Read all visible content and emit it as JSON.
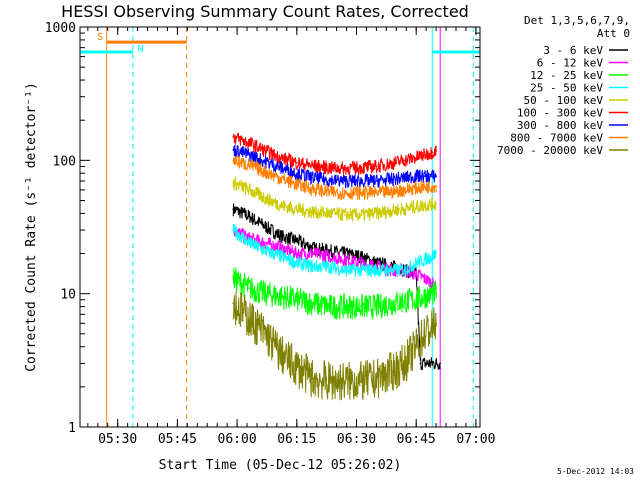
{
  "chart_data": {
    "type": "line",
    "title": "HESSI Observing Summary Count Rates, Corrected",
    "xlabel": "Start Time (05-Dec-12 05:26:02)",
    "ylabel": "Corrected Count Rate (s⁻¹ detector⁻¹)",
    "x_unit": "minutes after 05:26:02 UT",
    "xlim": [
      -0.5,
      100
    ],
    "ylim": [
      1,
      1000
    ],
    "y_scale": "log",
    "x_ticks": [
      {
        "value": 8.97,
        "label": "05:30"
      },
      {
        "value": 23.97,
        "label": "05:45"
      },
      {
        "value": 38.97,
        "label": "06:00"
      },
      {
        "value": 53.97,
        "label": "06:15"
      },
      {
        "value": 68.97,
        "label": "06:30"
      },
      {
        "value": 83.97,
        "label": "06:45"
      },
      {
        "value": 98.97,
        "label": "07:00"
      }
    ],
    "y_ticks": [
      {
        "value": 1,
        "label": "1"
      },
      {
        "value": 10,
        "label": "10"
      },
      {
        "value": 100,
        "label": "100"
      },
      {
        "value": 1000,
        "label": "1000"
      }
    ],
    "legend": {
      "header": [
        "Det 1,3,5,6,7,9,",
        "Att 0"
      ],
      "placement": "right-outside-top"
    },
    "series": [
      {
        "name": "3 - 6 keV",
        "color": "#000000",
        "x": [
          38,
          42,
          46,
          50,
          54,
          58,
          62,
          66,
          70,
          74,
          78,
          81,
          84,
          85,
          87,
          88,
          89,
          90
        ],
        "y": [
          43,
          38,
          32,
          27,
          25,
          22,
          21,
          20,
          19,
          17,
          16,
          15,
          14,
          3,
          3,
          3,
          3,
          3
        ]
      },
      {
        "name": "6 - 12 keV",
        "color": "#ff00ff",
        "x": [
          38,
          42,
          46,
          50,
          54,
          58,
          62,
          66,
          70,
          74,
          78,
          81,
          84,
          86,
          88,
          89
        ],
        "y": [
          30,
          26,
          24,
          22,
          20,
          20,
          19,
          18,
          17,
          16,
          15,
          15,
          14,
          13,
          12,
          11
        ]
      },
      {
        "name": "12 - 25 keV",
        "color": "#00ff00",
        "x": [
          38,
          42,
          46,
          50,
          54,
          58,
          62,
          66,
          70,
          74,
          78,
          81,
          84,
          86,
          88,
          89
        ],
        "y": [
          13,
          11,
          10,
          9.5,
          9,
          8.5,
          8,
          8,
          8,
          8,
          8.5,
          8.8,
          9,
          9.5,
          10,
          10
        ]
      },
      {
        "name": "25 - 50 keV",
        "color": "#00ffff",
        "x": [
          38,
          42,
          46,
          50,
          54,
          58,
          62,
          66,
          70,
          74,
          78,
          81,
          84,
          86,
          88,
          89
        ],
        "y": [
          30,
          24,
          21,
          19,
          17,
          16,
          16,
          15,
          15,
          15,
          15,
          15,
          17,
          18,
          19,
          20
        ]
      },
      {
        "name": "50 - 100 keV",
        "color": "#cccc00",
        "x": [
          38,
          42,
          46,
          50,
          54,
          58,
          62,
          66,
          70,
          74,
          78,
          81,
          84,
          86,
          88,
          89
        ],
        "y": [
          68,
          60,
          52,
          46,
          43,
          41,
          40,
          39,
          39,
          40,
          42,
          43,
          45,
          46,
          47,
          47
        ]
      },
      {
        "name": "100 - 300 keV",
        "color": "#ff0000",
        "x": [
          38,
          42,
          46,
          50,
          54,
          58,
          62,
          66,
          70,
          74,
          78,
          81,
          84,
          86,
          88,
          89
        ],
        "y": [
          150,
          135,
          118,
          104,
          96,
          91,
          88,
          87,
          88,
          90,
          95,
          100,
          105,
          110,
          115,
          118
        ]
      },
      {
        "name": "300 - 800 keV",
        "color": "#0000ff",
        "x": [
          38,
          42,
          46,
          50,
          54,
          58,
          62,
          66,
          70,
          74,
          78,
          81,
          84,
          86,
          88,
          89
        ],
        "y": [
          120,
          110,
          98,
          88,
          80,
          74,
          71,
          70,
          70,
          70,
          72,
          74,
          76,
          76,
          76,
          76
        ]
      },
      {
        "name": "800 - 7000 keV",
        "color": "#ff8000",
        "x": [
          38,
          42,
          46,
          50,
          54,
          58,
          62,
          66,
          70,
          74,
          78,
          81,
          84,
          86,
          88,
          89
        ],
        "y": [
          100,
          92,
          82,
          73,
          66,
          61,
          58,
          57,
          57,
          57,
          58,
          60,
          62,
          63,
          64,
          64
        ]
      },
      {
        "name": "7000 - 20000 keV",
        "color": "#808000",
        "x": [
          38,
          42,
          46,
          50,
          54,
          58,
          62,
          66,
          70,
          74,
          78,
          81,
          84,
          86,
          88,
          89
        ],
        "y": [
          8.5,
          6.5,
          5,
          3.5,
          2.8,
          2.3,
          2.2,
          2.2,
          2.2,
          2.3,
          2.6,
          3.0,
          4.0,
          5.0,
          5.5,
          6.0
        ]
      }
    ],
    "annotations": {
      "flag_labels": [
        {
          "text": "S",
          "color": "#ff8000",
          "x": 4.6,
          "y": 800
        },
        {
          "text": "N",
          "color": "#00ffff",
          "x": 14.7,
          "y": 650
        }
      ],
      "flag_bars": [
        {
          "color": "#ff8000",
          "x_start": 6.2,
          "x_end": 26.3,
          "y": 770
        },
        {
          "color": "#00ffff",
          "x_start": -0.5,
          "x_end": 12.8,
          "y": 650
        },
        {
          "color": "#00ffff",
          "x_start": 88.0,
          "x_end": 100,
          "y": 650
        }
      ],
      "vertical_lines": [
        {
          "x": 6.2,
          "color": "#ff8000",
          "style": "solid"
        },
        {
          "x": 26.3,
          "color": "#ff8000",
          "style": "dashed"
        },
        {
          "x": 12.8,
          "color": "#00ffff",
          "style": "dashed"
        },
        {
          "x": 88.0,
          "color": "#00ffff",
          "style": "solid"
        },
        {
          "x": 98.3,
          "color": "#00ffff",
          "style": "dashed"
        },
        {
          "x": 90.0,
          "color": "#ff00ff",
          "style": "solid"
        }
      ]
    },
    "footer": "5-Dec-2012 14:03"
  }
}
